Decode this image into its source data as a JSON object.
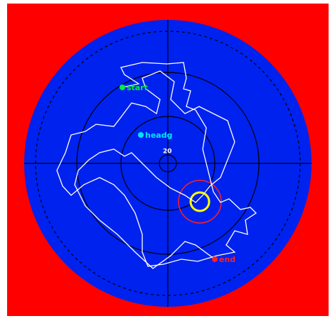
{
  "markers": {
    "start": "start",
    "heading": "headg",
    "end": "end",
    "center": "20"
  }
}
